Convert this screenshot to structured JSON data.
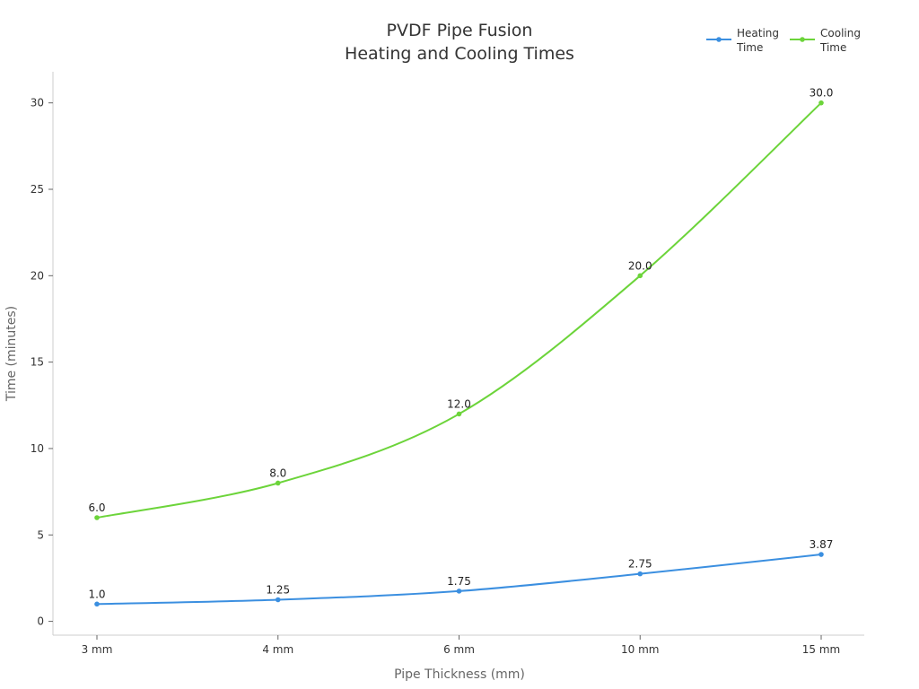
{
  "chart_data": {
    "type": "line",
    "title": [
      "PVDF Pipe Fusion",
      "Heating and Cooling Times"
    ],
    "xlabel": "Pipe Thickness (mm)",
    "ylabel": "Time (minutes)",
    "categories": [
      "3 mm",
      "4 mm",
      "6 mm",
      "10 mm",
      "15 mm"
    ],
    "ylim": [
      -0.8,
      31.8
    ],
    "yticks": [
      0,
      5,
      10,
      15,
      20,
      25,
      30
    ],
    "grid": false,
    "legend_position": "top-right",
    "series": [
      {
        "name": [
          "Heating",
          "Time"
        ],
        "color": "#3b8fe0",
        "values": [
          1.0,
          1.25,
          1.75,
          2.75,
          3.87
        ],
        "labels": [
          "1.0",
          "1.25",
          "1.75",
          "2.75",
          "3.87"
        ]
      },
      {
        "name": [
          "Cooling",
          "Time"
        ],
        "color": "#6cd43a",
        "values": [
          6.0,
          8.0,
          12.0,
          20.0,
          30.0
        ],
        "labels": [
          "6.0",
          "8.0",
          "12.0",
          "20.0",
          "30.0"
        ]
      }
    ]
  }
}
